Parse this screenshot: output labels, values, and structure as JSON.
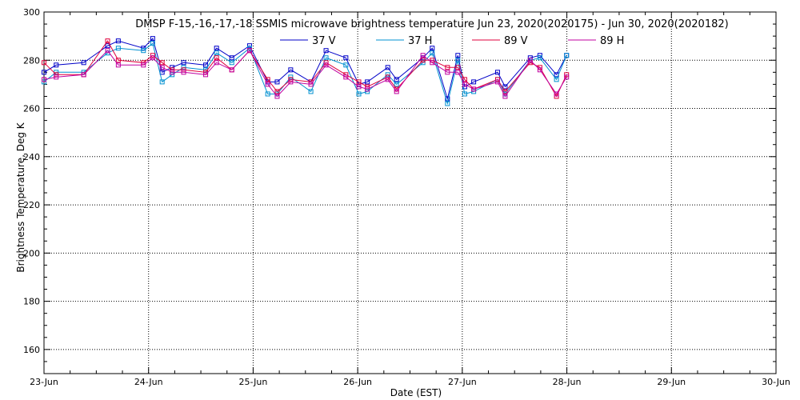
{
  "chart_data": {
    "type": "line",
    "title": "DMSP F-15,-16,-17,-18 SSMIS microwave brightness temperature Jun 23, 2020(2020175) - Jun 30, 2020(2020182)",
    "xlabel": "Date (EST)",
    "ylabel": "Brightness Temperature, Deg K",
    "ylim": [
      150,
      300
    ],
    "xlim": [
      "2020-06-23T00:00",
      "2020-06-30T00:00"
    ],
    "x_ticks": [
      "23-Jun",
      "24-Jun",
      "25-Jun",
      "26-Jun",
      "27-Jun",
      "28-Jun",
      "29-Jun",
      "30-Jun"
    ],
    "y_ticks": [
      160,
      180,
      200,
      220,
      240,
      260,
      280,
      300
    ],
    "grid": true,
    "legend_position": "top",
    "x": [
      "2020-06-23T00:00",
      "2020-06-23T02:48",
      "2020-06-23T09:07",
      "2020-06-23T14:36",
      "2020-06-23T17:03",
      "2020-06-23T22:49",
      "2020-06-24T00:57",
      "2020-06-24T03:07",
      "2020-06-24T05:24",
      "2020-06-24T08:03",
      "2020-06-24T13:06",
      "2020-06-24T15:36",
      "2020-06-24T19:06",
      "2020-06-24T23:11",
      "2020-06-25T03:21",
      "2020-06-25T05:31",
      "2020-06-25T08:37",
      "2020-06-25T13:15",
      "2020-06-25T16:44",
      "2020-06-25T21:17",
      "2020-06-26T00:15",
      "2020-06-26T02:12",
      "2020-06-26T06:54",
      "2020-06-26T08:55",
      "2020-06-26T14:58",
      "2020-06-26T17:06",
      "2020-06-26T20:36",
      "2020-06-26T22:59",
      "2020-06-27T00:34",
      "2020-06-27T02:37",
      "2020-06-27T08:06",
      "2020-06-27T09:50",
      "2020-06-27T15:36",
      "2020-06-27T17:49",
      "2020-06-27T21:37",
      "2020-06-27T23:56",
      "2020-06-28T04:00",
      "2020-06-28T06:18",
      "2020-06-28T08:00"
    ],
    "series": [
      {
        "name": "37 V",
        "color": "#0000c8",
        "values": [
          275,
          278,
          279,
          286,
          288,
          285,
          289,
          275,
          277,
          279,
          278,
          285,
          281,
          286,
          271,
          271,
          276,
          271,
          284,
          281,
          270,
          271,
          277,
          272,
          281,
          285,
          264,
          282,
          269,
          271,
          275,
          269,
          281,
          282,
          274,
          282,
          null,
          null,
          null
        ]
      },
      {
        "name": "37 H",
        "color": "#0090d0",
        "values": [
          271,
          275,
          275,
          283,
          285,
          284,
          287,
          271,
          274,
          277,
          276,
          283,
          279,
          285,
          266,
          266,
          273,
          267,
          281,
          278,
          266,
          267,
          274,
          270,
          279,
          283,
          262,
          280,
          266,
          267,
          272,
          266,
          280,
          281,
          272,
          282,
          null,
          null,
          null
        ]
      },
      {
        "name": "89 V",
        "color": "#e0003c",
        "values": [
          279,
          274,
          274,
          288,
          280,
          279,
          282,
          279,
          276,
          276,
          275,
          281,
          276,
          284,
          272,
          267,
          272,
          271,
          279,
          274,
          271,
          269,
          273,
          268,
          280,
          280,
          277,
          277,
          272,
          268,
          272,
          267,
          279,
          277,
          265,
          274,
          null,
          null,
          null
        ]
      },
      {
        "name": "89 H",
        "color": "#c000a0",
        "values": [
          272,
          273,
          274,
          284,
          278,
          278,
          281,
          277,
          275,
          275,
          274,
          279,
          276,
          284,
          270,
          265,
          271,
          270,
          278,
          273,
          269,
          268,
          272,
          267,
          282,
          279,
          275,
          275,
          270,
          268,
          271,
          265,
          280,
          276,
          266,
          273,
          null,
          null,
          null
        ]
      }
    ]
  }
}
